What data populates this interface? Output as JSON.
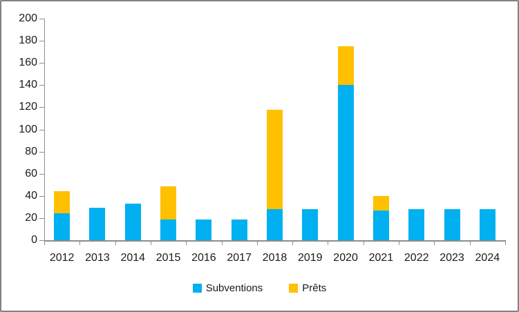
{
  "chart_data": {
    "type": "bar",
    "stacked": true,
    "title": "",
    "xlabel": "",
    "ylabel": "",
    "categories": [
      "2012",
      "2013",
      "2014",
      "2015",
      "2016",
      "2017",
      "2018",
      "2019",
      "2020",
      "2021",
      "2022",
      "2023",
      "2024"
    ],
    "series": [
      {
        "name": "Subventions",
        "color": "#00B0F0",
        "values": [
          24,
          29,
          33,
          19,
          19,
          19,
          28,
          28,
          140,
          27,
          28,
          28,
          28
        ]
      },
      {
        "name": "Prêts",
        "color": "#FFC000",
        "values": [
          20,
          0,
          0,
          30,
          0,
          0,
          90,
          0,
          35,
          13,
          0,
          0,
          0
        ]
      }
    ],
    "totals": [
      44,
      29,
      33,
      49,
      19,
      19,
      118,
      28,
      175,
      40,
      28,
      28,
      28
    ],
    "ylim": [
      0,
      200
    ],
    "ytick_step": 20,
    "yticks": [
      0,
      20,
      40,
      60,
      80,
      100,
      120,
      140,
      160,
      180,
      200
    ],
    "grid": false,
    "legend_position": "bottom",
    "colors": {
      "axis": "#8c8c8c",
      "text": "#1a1a1a",
      "border": "#808080",
      "background": "#ffffff"
    }
  }
}
